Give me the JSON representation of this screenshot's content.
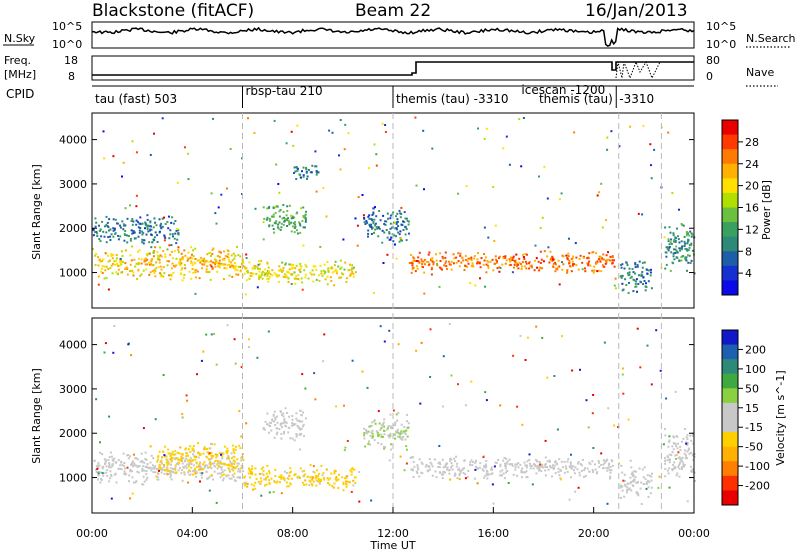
{
  "header": {
    "station": "Blackstone (fitACF)",
    "beam": "Beam 22",
    "date": "16/Jan/2013"
  },
  "sky_panel": {
    "left_label": "N.Sky",
    "right_label": "N.Search",
    "left_ticks": [
      "10^5",
      "10^0"
    ],
    "right_ticks": [
      "10^5",
      "10^0"
    ]
  },
  "freq_panel": {
    "left_label_1": "Freq.",
    "left_label_2": "[MHz]",
    "right_label": "Nave",
    "left_ticks": [
      "18",
      "8"
    ],
    "right_ticks": [
      "80",
      "0"
    ]
  },
  "cpid_panel": {
    "label": "CPID",
    "segments": [
      {
        "label": "tau (fast) 503",
        "start_hr": 0.0
      },
      {
        "label": "rbsp-tau 210",
        "start_hr": 6.0
      },
      {
        "label": "themis (tau) -3310",
        "start_hr": 12.0
      },
      {
        "label": "icescan -1200",
        "start_hr": 17.0
      },
      {
        "label": "themis (tau)",
        "start_hr": 17.7
      },
      {
        "label": "-3310",
        "start_hr": 20.9
      }
    ],
    "dividers_hr": [
      6.0,
      12.0,
      20.9
    ]
  },
  "axes": {
    "time_ticks": [
      "00:00",
      "04:00",
      "08:00",
      "12:00",
      "16:00",
      "20:00",
      "00:00"
    ],
    "range_ticks": [
      "1000",
      "2000",
      "3000",
      "4000"
    ],
    "xlabel": "Time UT",
    "ylabel": "Slant Range [km]"
  },
  "power_colorbar": {
    "label": "Power [dB]",
    "ticks": [
      "28",
      "24",
      "20",
      "16",
      "12",
      "8",
      "4"
    ],
    "colors": [
      "#e80000",
      "#ff3a00",
      "#ff7a00",
      "#ffb000",
      "#ffe000",
      "#b0e000",
      "#6cc040",
      "#3aa060",
      "#2e8a78",
      "#1e5ea8",
      "#1430d0",
      "#0a0ae8"
    ]
  },
  "velocity_colorbar": {
    "label": "Velocity [m s^-1]",
    "ticks": [
      "200",
      "100",
      "50",
      "15",
      "-15",
      "-50",
      "-100",
      "-200"
    ],
    "colors": [
      "#1018c8",
      "#1e60b0",
      "#2e8a78",
      "#40a840",
      "#8ad040",
      "#c8c8c8",
      "#c8c8c8",
      "#ffd000",
      "#ffb000",
      "#ff8000",
      "#ff3000",
      "#e80000"
    ]
  },
  "colors": {
    "gray_scatter": "#c4c4c4",
    "dashed_lines": "#b8b8b8",
    "nave_dots": "#000000"
  },
  "chart_data": {
    "type": "heatmap",
    "title": "Blackstone (fitACF)",
    "xlabel": "Time UT",
    "ylabel": "Slant Range [km]",
    "xlim": [
      0,
      24
    ],
    "ylim": [
      200,
      4600
    ],
    "x_unit": "hours UT",
    "series": [
      {
        "name": "Power [dB]",
        "color_scale": {
          "min": 0,
          "max": 30,
          "unit": "dB"
        },
        "regions": [
          {
            "t_start": 0.0,
            "t_end": 6.0,
            "range_min": 800,
            "range_max": 1600,
            "value": 20
          },
          {
            "t_start": 0.0,
            "t_end": 3.5,
            "range_min": 1600,
            "range_max": 2300,
            "value": 8
          },
          {
            "t_start": 6.0,
            "t_end": 10.5,
            "range_min": 700,
            "range_max": 1300,
            "value": 18
          },
          {
            "t_start": 6.8,
            "t_end": 8.5,
            "range_min": 1800,
            "range_max": 2600,
            "value": 12
          },
          {
            "t_start": 8.0,
            "t_end": 9.0,
            "range_min": 3000,
            "range_max": 3500,
            "value": 8
          },
          {
            "t_start": 10.8,
            "t_end": 12.6,
            "range_min": 1600,
            "range_max": 2500,
            "value": 8
          },
          {
            "t_start": 12.6,
            "t_end": 20.8,
            "range_min": 950,
            "range_max": 1500,
            "value": 24
          },
          {
            "t_start": 21.0,
            "t_end": 22.3,
            "range_min": 500,
            "range_max": 1300,
            "value": 8
          },
          {
            "t_start": 22.8,
            "t_end": 24.0,
            "range_min": 900,
            "range_max": 2200,
            "value": 10
          }
        ]
      },
      {
        "name": "Velocity [m s^-1]",
        "color_scale": {
          "min": -200,
          "max": 200,
          "unit": "m s^-1"
        },
        "regions": [
          {
            "t_start": 0.0,
            "t_end": 6.0,
            "range_min": 800,
            "range_max": 1600,
            "value": 0
          },
          {
            "t_start": 2.5,
            "t_end": 6.0,
            "range_min": 1000,
            "range_max": 1800,
            "value": -50
          },
          {
            "t_start": 6.0,
            "t_end": 10.5,
            "range_min": 700,
            "range_max": 1300,
            "value": -50
          },
          {
            "t_start": 6.8,
            "t_end": 8.5,
            "range_min": 1800,
            "range_max": 2600,
            "value": 0
          },
          {
            "t_start": 10.8,
            "t_end": 12.6,
            "range_min": 1600,
            "range_max": 2500,
            "value": 30
          },
          {
            "t_start": 12.6,
            "t_end": 20.8,
            "range_min": 950,
            "range_max": 1500,
            "value": 0
          },
          {
            "t_start": 21.0,
            "t_end": 22.3,
            "range_min": 500,
            "range_max": 1300,
            "value": 0
          },
          {
            "t_start": 22.8,
            "t_end": 24.0,
            "range_min": 900,
            "range_max": 2200,
            "value": 0
          }
        ]
      }
    ]
  }
}
